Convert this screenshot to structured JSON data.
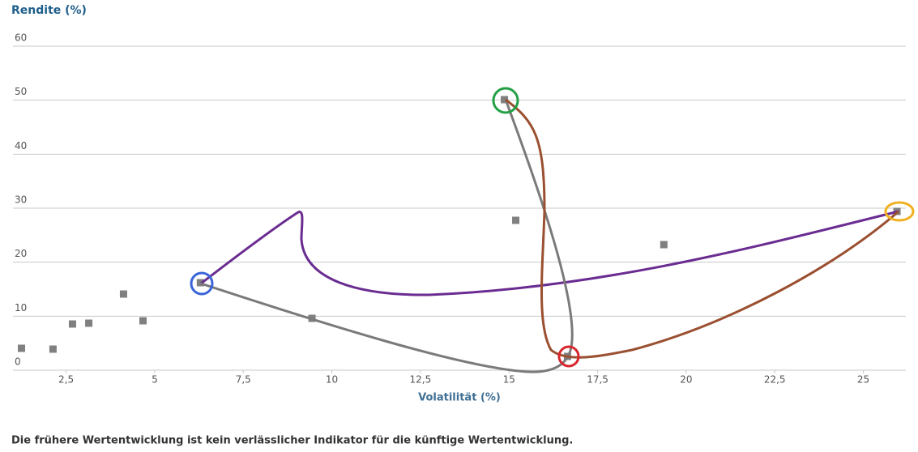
{
  "chart_data": {
    "type": "scatter",
    "y_title": "Rendite (%)",
    "x_title": "Volatilität (%)",
    "footnote": "Die frühere Wertentwicklung ist kein verlässlicher Indikator für die künftige Wertentwicklung.",
    "color": "#808080",
    "x": [
      1.24,
      2.13,
      2.68,
      3.14,
      4.12,
      4.67,
      6.29,
      9.44,
      14.87,
      15.19,
      16.65,
      19.37,
      25.95
    ],
    "values": [
      4.05,
      3.9,
      8.55,
      8.7,
      14.1,
      9.15,
      16.2,
      9.6,
      50.1,
      27.75,
      2.55,
      23.25,
      29.4
    ],
    "xlim": [
      1,
      26.2
    ],
    "ylim": [
      0,
      60
    ],
    "xticks": [
      {
        "value": 2.5,
        "label": "2,5"
      },
      5,
      {
        "value": 7.5,
        "label": "7,5"
      },
      10,
      {
        "value": 12.5,
        "label": "12,5"
      },
      15,
      {
        "value": 17.5,
        "label": "17,5"
      },
      20,
      {
        "value": 22.5,
        "label": "22,5"
      },
      25
    ],
    "yticks": [
      0,
      10,
      20,
      30,
      40,
      50,
      60
    ],
    "grid": true
  }
}
